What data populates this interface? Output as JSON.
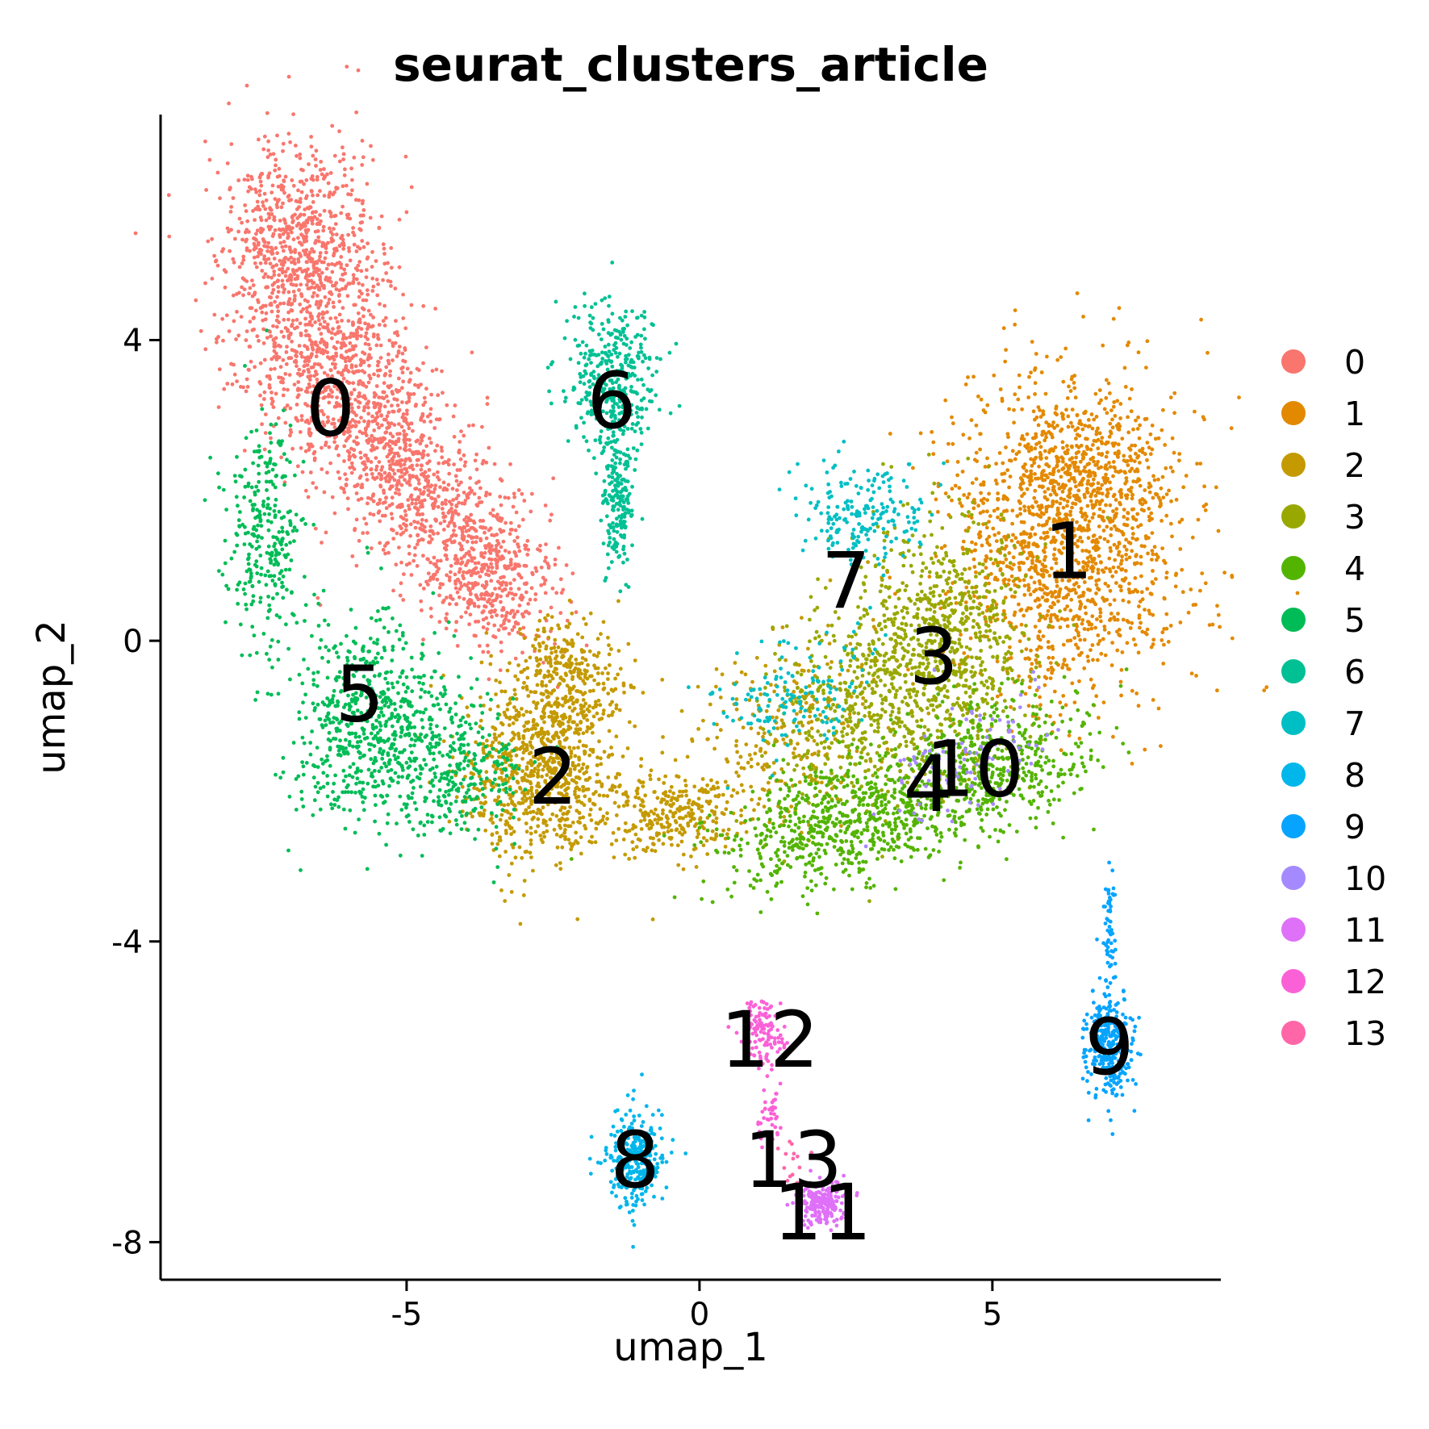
{
  "chart_data": {
    "type": "scatter",
    "title": "seurat_clusters_article",
    "xlabel": "umap_1",
    "ylabel": "umap_2",
    "xlim": [
      -9.2,
      8.9
    ],
    "ylim": [
      -8.5,
      7.0
    ],
    "xticks": [
      -5,
      0,
      5
    ],
    "xtick_labels": [
      "-5",
      "0",
      "5"
    ],
    "yticks": [
      4,
      0,
      -4,
      -8
    ],
    "ytick_labels": [
      "4",
      "0",
      "-4",
      "-8"
    ],
    "legend_position": "right",
    "legend": [
      {
        "label": "0",
        "color": "#F8766D"
      },
      {
        "label": "1",
        "color": "#E38900"
      },
      {
        "label": "2",
        "color": "#C49A00"
      },
      {
        "label": "3",
        "color": "#99A800"
      },
      {
        "label": "4",
        "color": "#53B400"
      },
      {
        "label": "5",
        "color": "#00BC56"
      },
      {
        "label": "6",
        "color": "#00C094"
      },
      {
        "label": "7",
        "color": "#00BFC4"
      },
      {
        "label": "8",
        "color": "#00B6EB"
      },
      {
        "label": "9",
        "color": "#06A4FF"
      },
      {
        "label": "10",
        "color": "#A58AFF"
      },
      {
        "label": "11",
        "color": "#DF70F8"
      },
      {
        "label": "12",
        "color": "#FB61D7"
      },
      {
        "label": "13",
        "color": "#FF66A8"
      }
    ],
    "clusters": [
      {
        "label": "0",
        "color": "#F8766D",
        "label_pos": [
          -6.3,
          3.1
        ],
        "blobs": [
          [
            -6.8,
            5.2,
            1.2,
            1.3,
            0.3,
            800
          ],
          [
            -6.2,
            3.6,
            1.5,
            1.2,
            -0.4,
            700
          ],
          [
            -5.0,
            2.2,
            1.6,
            1.0,
            -0.6,
            700
          ],
          [
            -3.6,
            0.9,
            1.2,
            0.8,
            -0.6,
            500
          ]
        ]
      },
      {
        "label": "1",
        "color": "#E38900",
        "label_pos": [
          6.3,
          1.2
        ],
        "blobs": [
          [
            6.3,
            1.3,
            1.8,
            1.9,
            0,
            1400
          ],
          [
            6.5,
            2.4,
            1.3,
            0.8,
            0,
            300
          ]
        ]
      },
      {
        "label": "2",
        "color": "#C49A00",
        "label_pos": [
          -2.5,
          -1.8
        ],
        "blobs": [
          [
            -2.8,
            -1.8,
            1.2,
            1.0,
            0,
            700
          ],
          [
            -2.3,
            -0.6,
            0.9,
            0.9,
            0,
            400
          ],
          [
            -0.5,
            -2.3,
            1.3,
            0.5,
            0,
            300
          ],
          [
            1.5,
            -1.2,
            2.0,
            1.2,
            0.3,
            300
          ]
        ]
      },
      {
        "label": "3",
        "color": "#99A800",
        "label_pos": [
          4.0,
          -0.2
        ],
        "blobs": [
          [
            4.0,
            -0.1,
            1.4,
            1.5,
            0,
            900
          ],
          [
            2.5,
            -1.0,
            1.2,
            1.0,
            0,
            300
          ]
        ]
      },
      {
        "label": "4",
        "color": "#53B400",
        "label_pos": [
          3.9,
          -1.9
        ],
        "blobs": [
          [
            2.5,
            -2.4,
            2.0,
            0.7,
            0.2,
            700
          ],
          [
            5.0,
            -1.7,
            1.6,
            0.8,
            0.2,
            500
          ]
        ]
      },
      {
        "label": "5",
        "color": "#00BC56",
        "label_pos": [
          -5.8,
          -0.7
        ],
        "blobs": [
          [
            -5.6,
            -1.1,
            1.3,
            1.2,
            0.3,
            700
          ],
          [
            -7.4,
            1.4,
            0.6,
            1.3,
            0,
            300
          ],
          [
            -4.0,
            -1.8,
            0.9,
            0.8,
            0,
            250
          ]
        ]
      },
      {
        "label": "6",
        "color": "#00C094",
        "label_pos": [
          -1.5,
          3.2
        ],
        "blobs": [
          [
            -1.5,
            3.5,
            0.7,
            0.9,
            0,
            400
          ],
          [
            -1.4,
            1.9,
            0.25,
            0.9,
            0,
            200
          ]
        ]
      },
      {
        "label": "7",
        "color": "#00BFC4",
        "label_pos": [
          2.5,
          0.8
        ],
        "blobs": [
          [
            2.8,
            1.7,
            0.9,
            0.6,
            0,
            200
          ],
          [
            1.6,
            -0.7,
            1.3,
            0.7,
            0.3,
            150
          ]
        ]
      },
      {
        "label": "8",
        "color": "#00B6EB",
        "label_pos": [
          -1.1,
          -6.9
        ],
        "blobs": [
          [
            -1.1,
            -6.9,
            0.5,
            0.55,
            0,
            300
          ]
        ]
      },
      {
        "label": "9",
        "color": "#06A4FF",
        "label_pos": [
          7.0,
          -5.4
        ],
        "blobs": [
          [
            7.0,
            -5.4,
            0.35,
            0.65,
            0,
            300
          ],
          [
            7.0,
            -3.7,
            0.1,
            0.9,
            0,
            60
          ]
        ]
      },
      {
        "label": "10",
        "color": "#A58AFF",
        "label_pos": [
          4.7,
          -1.7
        ],
        "blobs": [
          [
            4.6,
            -1.6,
            1.3,
            0.6,
            0.3,
            100
          ]
        ]
      },
      {
        "label": "11",
        "color": "#DF70F8",
        "label_pos": [
          2.1,
          -7.6
        ],
        "blobs": [
          [
            2.1,
            -7.5,
            0.35,
            0.25,
            0,
            200
          ]
        ]
      },
      {
        "label": "12",
        "color": "#FB61D7",
        "label_pos": [
          1.2,
          -5.3
        ],
        "blobs": [
          [
            1.1,
            -5.2,
            0.35,
            0.4,
            0,
            120
          ],
          [
            1.2,
            -6.3,
            0.2,
            0.6,
            0,
            40
          ]
        ]
      },
      {
        "label": "13",
        "color": "#FF66A8",
        "label_pos": [
          1.6,
          -6.9
        ],
        "blobs": [
          [
            1.6,
            -6.8,
            0.2,
            0.4,
            0,
            15
          ]
        ]
      }
    ]
  }
}
